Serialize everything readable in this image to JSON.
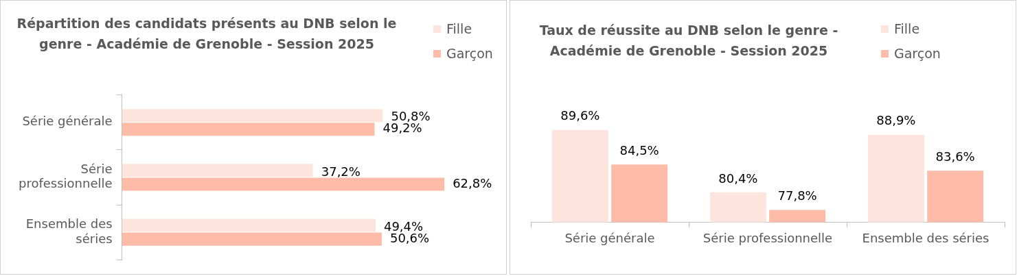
{
  "chart_data": [
    {
      "type": "bar",
      "orientation": "horizontal",
      "title": "Répartition des candidats présents au DNB selon le genre - Académie de Grenoble - Session 2025",
      "categories": [
        "Série générale",
        "Série professionnelle",
        "Ensemble des séries"
      ],
      "series": [
        {
          "name": "Fille",
          "color": "#fde5de",
          "values": [
            50.8,
            37.2,
            49.4
          ],
          "value_labels": [
            "50,8%",
            "37,2%",
            "49,4%"
          ]
        },
        {
          "name": "Garçon",
          "color": "#fdbba8",
          "values": [
            49.2,
            62.8,
            50.6
          ],
          "value_labels": [
            "49,2%",
            "62,8%",
            "50,6%"
          ]
        }
      ],
      "legend": "top right",
      "grid": false,
      "tick_labels": "y"
    },
    {
      "type": "bar",
      "title": "Taux de réussite au DNB selon le genre - Académie de Grenoble - Session 2025",
      "categories": [
        "Série générale",
        "Série professionnelle",
        "Ensemble des séries"
      ],
      "series": [
        {
          "name": "Fille",
          "color": "#fde5de",
          "values": [
            89.6,
            80.4,
            88.9
          ],
          "value_labels": [
            "89,6%",
            "80,4%",
            "88,9%"
          ]
        },
        {
          "name": "Garçon",
          "color": "#fdbba8",
          "values": [
            84.5,
            77.8,
            83.6
          ],
          "value_labels": [
            "84,5%",
            "77,8%",
            "83,6%"
          ]
        }
      ],
      "legend": "top right",
      "grid": false,
      "tick_labels": "x"
    }
  ]
}
